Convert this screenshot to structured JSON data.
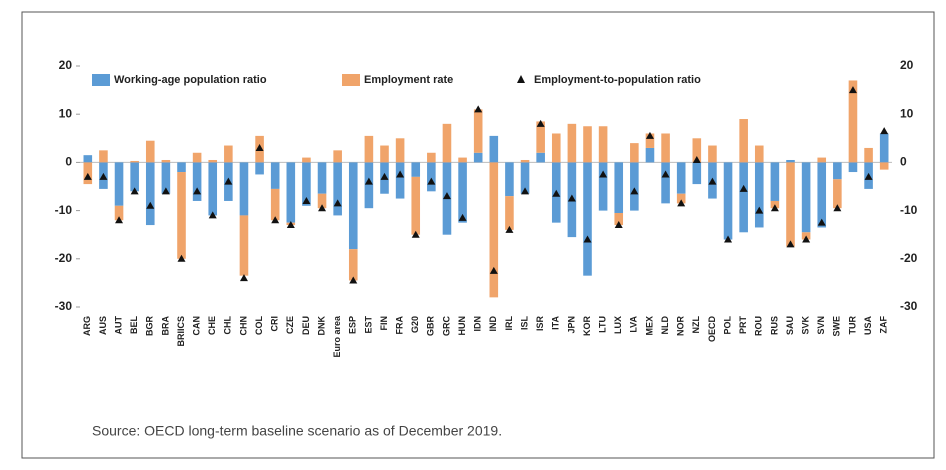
{
  "chart_data": {
    "type": "bar",
    "stacked": "diverging",
    "categories": [
      "ARG",
      "AUS",
      "AUT",
      "BEL",
      "BGR",
      "BRA",
      "BRIICS",
      "CAN",
      "CHE",
      "CHL",
      "CHN",
      "COL",
      "CRI",
      "CZE",
      "DEU",
      "DNK",
      "Euro area",
      "ESP",
      "EST",
      "FIN",
      "FRA",
      "G20",
      "GBR",
      "GRC",
      "HUN",
      "IDN",
      "IND",
      "IRL",
      "ISL",
      "ISR",
      "ITA",
      "JPN",
      "KOR",
      "LTU",
      "LUX",
      "LVA",
      "MEX",
      "NLD",
      "NOR",
      "NZL",
      "OECD",
      "POL",
      "PRT",
      "ROU",
      "RUS",
      "SAU",
      "SVK",
      "SVN",
      "SWE",
      "TUR",
      "USA",
      "ZAF"
    ],
    "series": [
      {
        "name": "Working-age population ratio",
        "color": "#5b9bd5",
        "kind": "bar",
        "values": [
          1.5,
          -5.5,
          -9,
          -6,
          -13,
          -6.5,
          -2,
          -8,
          -11,
          -8,
          -11,
          -2.5,
          -5.5,
          -12.5,
          -9,
          -6.5,
          -11,
          -18,
          -9.5,
          -6.5,
          -7.5,
          -3,
          -6,
          -15,
          -12.5,
          2,
          5.5,
          -7,
          -6.5,
          2,
          -12.5,
          -15.5,
          -23.5,
          -10,
          -10.5,
          -10,
          3,
          -8.5,
          -6.5,
          -4.5,
          -7.5,
          -16,
          -14.5,
          -13.5,
          -8,
          0.5,
          -14.5,
          -13.5,
          -3.5,
          -2,
          -5.5,
          6
        ]
      },
      {
        "name": "Employment rate",
        "color": "#f0a46a",
        "kind": "bar",
        "values": [
          -4.5,
          2.5,
          -3,
          0.3,
          4.5,
          0.5,
          -18,
          2,
          0.5,
          3.5,
          -12.5,
          5.5,
          -6.5,
          -0.5,
          1,
          -3,
          2.5,
          -6.5,
          5.5,
          3.5,
          5,
          -12,
          2,
          8,
          1,
          9,
          -28,
          -7,
          0.5,
          6.5,
          6,
          8,
          7.5,
          7.5,
          -2.5,
          4,
          3,
          6,
          -2,
          5,
          3.5,
          0,
          9,
          3.5,
          -1.5,
          -17.5,
          -1.5,
          1,
          -6,
          17,
          3,
          -1.5
        ]
      },
      {
        "name": "Employment-to-population ratio",
        "color": "#111111",
        "kind": "marker",
        "values": [
          -3,
          -3,
          -12,
          -6,
          -9,
          -6,
          -20,
          -6,
          -11,
          -4,
          -24,
          3,
          -12,
          -13,
          -8,
          -9.5,
          -8.5,
          -24.5,
          -4,
          -3,
          -2.5,
          -15,
          -4,
          -7,
          -11.5,
          11,
          -22.5,
          -14,
          -6,
          8,
          -6.5,
          -7.5,
          -16,
          -2.5,
          -13,
          -6,
          5.5,
          -2.5,
          -8.5,
          0.5,
          -4,
          -16,
          -5.5,
          -10,
          -9.5,
          -17,
          -16,
          -12.5,
          -9.5,
          15,
          -3,
          6.5
        ]
      }
    ],
    "ylim": [
      -30,
      20
    ],
    "yticks": [
      -30,
      -20,
      -10,
      0,
      10,
      20
    ],
    "grid": false,
    "legend": "top",
    "source": "Source: OECD long-term baseline scenario as of December 2019."
  }
}
